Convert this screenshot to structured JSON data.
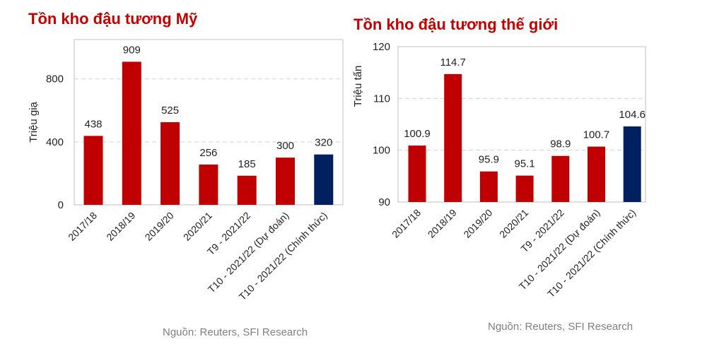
{
  "chart_data": [
    {
      "type": "bar",
      "title": "Tồn kho đậu tương Mỹ",
      "ylabel": "Triệu giạ",
      "xlabel": "",
      "categories": [
        "2017/18",
        "2018/19",
        "2019/20",
        "2020/21",
        "T9 - 2021/22",
        "T10 - 2021/22 (Dự đoán)",
        "T10 - 2021/22 (Chính thức)"
      ],
      "values": [
        438,
        909,
        525,
        256,
        185,
        300,
        320
      ],
      "yticks": [
        0,
        400,
        800
      ],
      "ylim": [
        0,
        1050
      ],
      "grid": true,
      "colors": [
        "#c00000",
        "#c00000",
        "#c00000",
        "#c00000",
        "#c00000",
        "#c00000",
        "#002060"
      ],
      "source": "Nguồn: Reuters, SFI Research"
    },
    {
      "type": "bar",
      "title": "Tồn kho đậu tương thế giới",
      "ylabel": "Triệu tấn",
      "xlabel": "",
      "categories": [
        "2017/18",
        "2018/19",
        "2019/20",
        "2020/21",
        "T9 - 2021/22",
        "T10 - 2021/22 (Dự đoán)",
        "T10 - 2021/22 (Chính thức)"
      ],
      "values": [
        100.9,
        114.7,
        95.9,
        95.1,
        98.9,
        100.7,
        104.6
      ],
      "yticks": [
        90,
        100,
        110,
        120
      ],
      "ylim": [
        90,
        120
      ],
      "grid": true,
      "colors": [
        "#c00000",
        "#c00000",
        "#c00000",
        "#c00000",
        "#c00000",
        "#c00000",
        "#002060"
      ],
      "source": "Nguồn: Reuters, SFI Research"
    }
  ]
}
